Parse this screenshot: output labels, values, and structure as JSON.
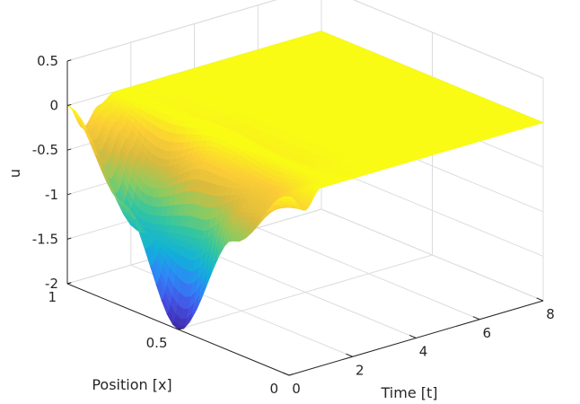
{
  "chart_data": {
    "type": "surface",
    "title": "",
    "xlabel": "Time [t]",
    "ylabel": "Position [x]",
    "zlabel": "u",
    "xlim": [
      0,
      8
    ],
    "ylim": [
      0,
      1
    ],
    "zlim": [
      -2,
      0.5
    ],
    "xticks": [
      "0",
      "2",
      "4",
      "6",
      "8"
    ],
    "yticks": [
      "0",
      "0.5",
      "1"
    ],
    "zticks": [
      "-2",
      "-1.5",
      "-1",
      "-0.5",
      "0",
      "0.5"
    ],
    "grid": true,
    "colormap": "parula",
    "colormap_colors": [
      "#3e26a8",
      "#4653e5",
      "#2e87f7",
      "#11b2d8",
      "#34c6a0",
      "#8bcb61",
      "#d9ba3e",
      "#fccd36",
      "#f9fb15"
    ],
    "surface_samples": {
      "t": [
        0,
        0.5,
        1,
        1.5,
        2,
        3,
        4,
        6,
        8
      ],
      "x": [
        0,
        0.25,
        0.5,
        0.75,
        1
      ],
      "u": [
        [
          0,
          -0.75,
          -2.0,
          -0.85,
          0
        ],
        [
          -0.2,
          -0.4,
          -1.1,
          -1.2,
          -0.3
        ],
        [
          0,
          -0.3,
          -0.2,
          -0.6,
          -0.1
        ],
        [
          0,
          0.0,
          0.1,
          0.05,
          0
        ],
        [
          0,
          -0.05,
          -0.05,
          -0.02,
          0
        ],
        [
          0,
          0,
          0,
          0,
          0
        ],
        [
          0,
          0,
          0,
          0,
          0
        ],
        [
          0,
          0,
          0,
          0,
          0
        ],
        [
          0,
          0,
          0,
          0,
          0
        ]
      ]
    }
  }
}
